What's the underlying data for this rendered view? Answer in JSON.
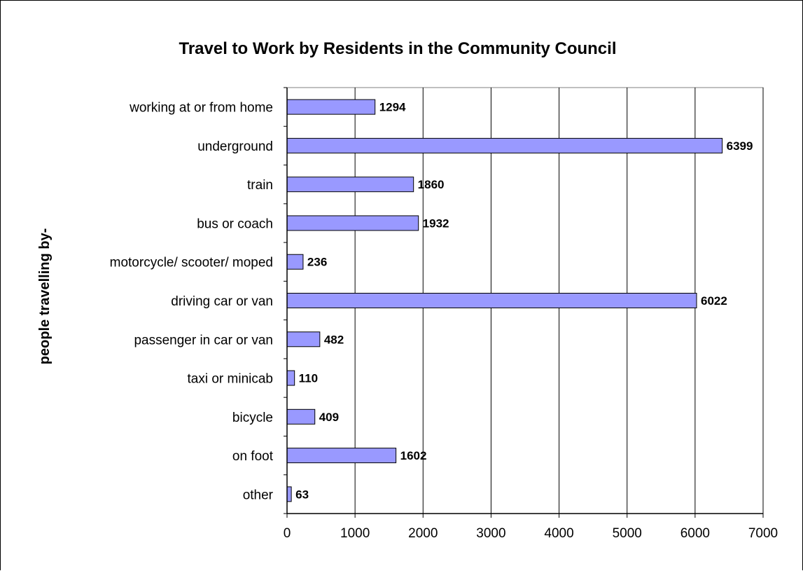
{
  "chart_data": {
    "type": "bar",
    "orientation": "horizontal",
    "title": "Travel to Work by Residents in the Community Council",
    "ylabel": "people travelling by-",
    "xlabel": "",
    "categories": [
      "working at or from home",
      "underground",
      "train",
      "bus or coach",
      "motorcycle/ scooter/ moped",
      "driving car or van",
      "passenger in car or van",
      "taxi or minicab",
      "bicycle",
      "on foot",
      "other"
    ],
    "values": [
      1294,
      6399,
      1860,
      1932,
      236,
      6022,
      482,
      110,
      409,
      1602,
      63
    ],
    "xlim": [
      0,
      7000
    ],
    "xticks": [
      0,
      1000,
      2000,
      3000,
      4000,
      5000,
      6000,
      7000
    ],
    "grid": "vertical",
    "legend": "none",
    "bar_color": "#9999ff",
    "plot_background": "#ffffff"
  }
}
